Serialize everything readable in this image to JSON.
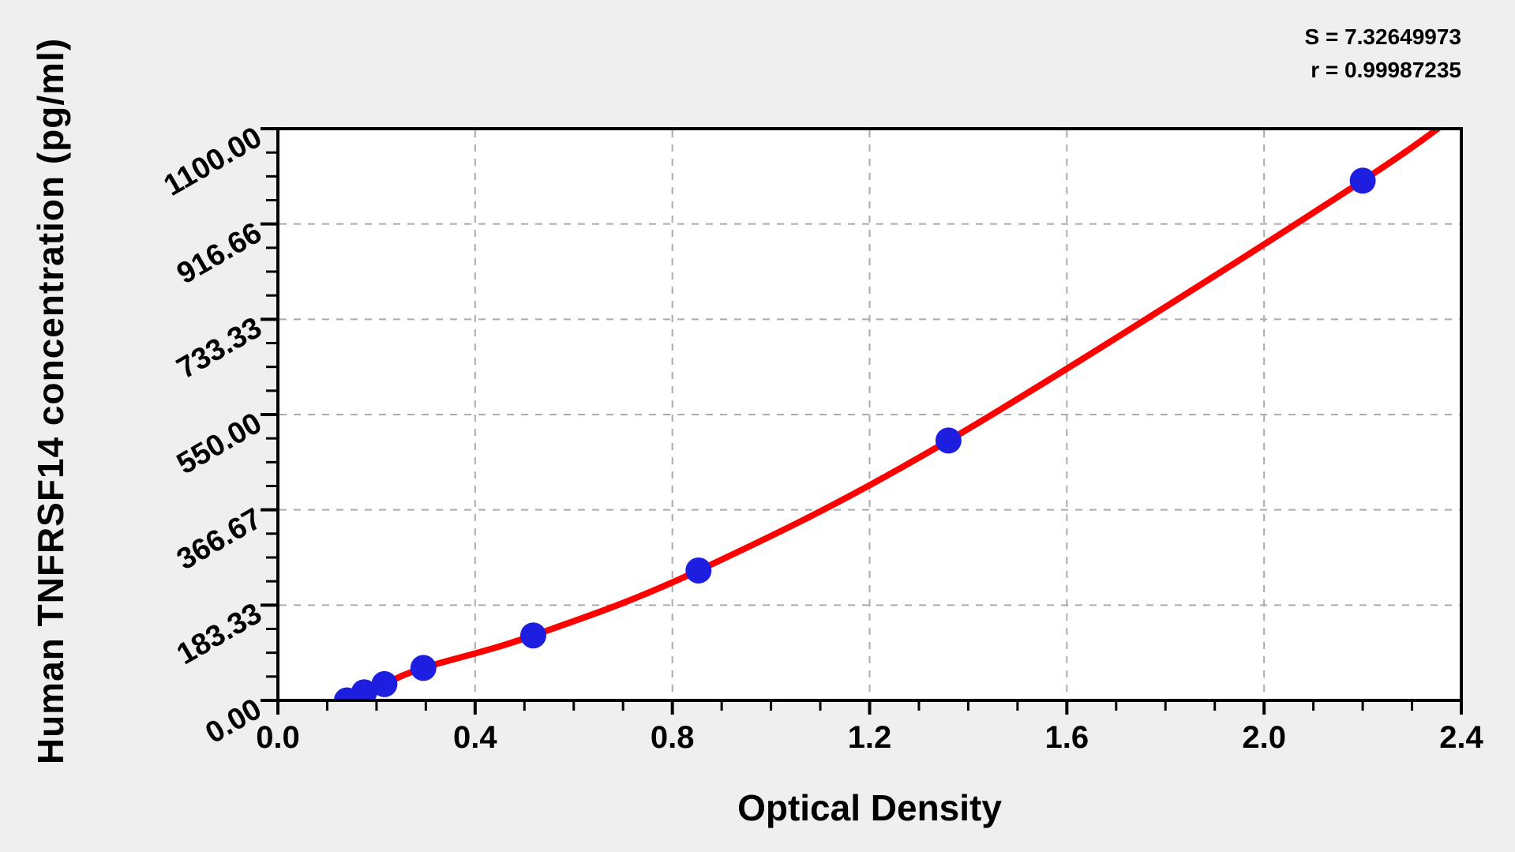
{
  "chart_data": {
    "type": "scatter",
    "title": "",
    "xlabel": "Optical Density",
    "ylabel": "Human TNFRSF14 concentration (pg/ml)",
    "annotation": {
      "s_label": "S = 7.32649973",
      "r_label": "r = 0.99987235"
    },
    "xlim": [
      0.0,
      2.4
    ],
    "ylim": [
      0,
      1100
    ],
    "x_tick_labels": [
      "0.0",
      "0.4",
      "0.8",
      "1.2",
      "1.6",
      "2.0",
      "2.4"
    ],
    "y_tick_labels": [
      "0.00",
      "183.33",
      "366.67",
      "550.00",
      "733.33",
      "916.66",
      "1100.00"
    ],
    "x_minor_step": 0.1,
    "y_minor_step": 45.8333,
    "grid": "dashed-major",
    "legend_position": "none",
    "series": [
      {
        "name": "standard-points",
        "type": "scatter",
        "marker": "circle",
        "color": "#1e1ee0",
        "points": [
          {
            "od": 0.14,
            "conc": 0
          },
          {
            "od": 0.175,
            "conc": 15.6
          },
          {
            "od": 0.216,
            "conc": 31.25
          },
          {
            "od": 0.295,
            "conc": 62.5
          },
          {
            "od": 0.518,
            "conc": 125
          },
          {
            "od": 0.853,
            "conc": 250
          },
          {
            "od": 1.36,
            "conc": 500
          },
          {
            "od": 2.2,
            "conc": 1000
          }
        ]
      },
      {
        "name": "fitted-curve",
        "type": "line",
        "color": "#ff0000",
        "curve_points": [
          {
            "od": 0.099,
            "conc": -5
          },
          {
            "od": 0.14,
            "conc": 0
          },
          {
            "od": 0.175,
            "conc": 15.6
          },
          {
            "od": 0.216,
            "conc": 31.25
          },
          {
            "od": 0.295,
            "conc": 62.5
          },
          {
            "od": 0.518,
            "conc": 125
          },
          {
            "od": 0.853,
            "conc": 250
          },
          {
            "od": 1.36,
            "conc": 500
          },
          {
            "od": 2.2,
            "conc": 1000
          },
          {
            "od": 2.45,
            "conc": 1175
          }
        ]
      }
    ],
    "colors": {
      "background": "#efefef",
      "plot_background": "#ffffff",
      "frame": "#000000",
      "gridline": "#ababab",
      "curve": "#ff0000",
      "marker": "#1e1ee0",
      "text": "#000000"
    }
  }
}
